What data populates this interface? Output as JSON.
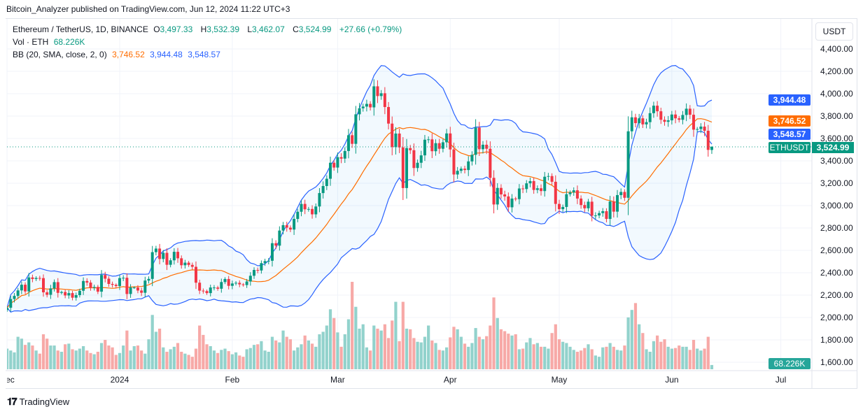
{
  "publisher_line": "Bitcoin_Analyzer published on TradingView.com, Jun 12, 2024 11:22 UTC+3",
  "legend": {
    "symbol": "Ethereum / TetherUS, 1D, BINANCE",
    "open_label": "O",
    "open": "3,497.33",
    "high_label": "H",
    "high": "3,532.39",
    "low_label": "L",
    "low": "3,462.07",
    "close_label": "C",
    "close": "3,524.99",
    "change": "+27.66 (+0.79%)",
    "vol_label": "Vol · ETH",
    "vol_value": "68.226K",
    "bb_label": "BB (20, SMA, close, 2, 0)",
    "bb_basis": "3,746.52",
    "bb_upper": "3,944.48",
    "bb_lower": "3,548.57"
  },
  "price_axis": {
    "unit": "USDT",
    "ticks": [
      "4,400.00",
      "4,200.00",
      "4,000.00",
      "3,800.00",
      "3,600.00",
      "3,400.00",
      "3,200.00",
      "3,000.00",
      "2,800.00",
      "2,600.00",
      "2,400.00",
      "2,200.00",
      "2,000.00",
      "1,800.00",
      "1,600.00"
    ]
  },
  "tags": {
    "symbol": "ETHUSDT",
    "upper": "3,944.48",
    "basis": "3,746.52",
    "lower": "3,548.57",
    "last": "3,524.99",
    "volume": "68.226K"
  },
  "footer": {
    "brand": "TradingView"
  },
  "colors": {
    "up": "#089981",
    "down": "#f23645",
    "bb_band": "#2962ff",
    "bb_basis": "#ff6d00",
    "volume_tag": "#26a69a"
  },
  "chart_data": {
    "type": "candlestick",
    "symbol": "ETHUSDT",
    "interval": "1D",
    "start_date": "2023-12-01",
    "end_date": "2024-06-12",
    "ylim": [
      1500,
      4500
    ],
    "x_ticks": [
      {
        "label": "Dec",
        "date": "2023-12-01"
      },
      {
        "label": "2024",
        "date": "2024-01-01"
      },
      {
        "label": "Feb",
        "date": "2024-02-01"
      },
      {
        "label": "Mar",
        "date": "2024-03-01"
      },
      {
        "label": "Apr",
        "date": "2024-04-01"
      },
      {
        "label": "May",
        "date": "2024-05-01"
      },
      {
        "label": "Jun",
        "date": "2024-06-01"
      },
      {
        "label": "Jul",
        "date": "2024-07-01"
      }
    ],
    "grid": true,
    "indicator": "Bollinger Bands (20, SMA, close, 2)",
    "last_bar": {
      "open": 3497.33,
      "high": 3532.39,
      "low": 3462.07,
      "close": 3524.99
    },
    "close": [
      2087,
      2165,
      2193,
      2242,
      2293,
      2233,
      2358,
      2344,
      2353,
      2352,
      2225,
      2203,
      2260,
      2316,
      2220,
      2228,
      2197,
      2218,
      2177,
      2200,
      2239,
      2326,
      2312,
      2265,
      2273,
      2231,
      2380,
      2347,
      2300,
      2292,
      2281,
      2352,
      2355,
      2210,
      2268,
      2268,
      2241,
      2221,
      2330,
      2345,
      2584,
      2616,
      2523,
      2578,
      2471,
      2511,
      2587,
      2529,
      2467,
      2490,
      2470,
      2453,
      2311,
      2240,
      2236,
      2218,
      2268,
      2268,
      2257,
      2317,
      2344,
      2283,
      2304,
      2310,
      2296,
      2290,
      2322,
      2373,
      2425,
      2420,
      2486,
      2504,
      2507,
      2664,
      2642,
      2777,
      2825,
      2803,
      2786,
      2881,
      2945,
      3015,
      2967,
      2970,
      2922,
      2992,
      3112,
      3175,
      3240,
      3383,
      3340,
      3433,
      3420,
      3488,
      3629,
      3552,
      3816,
      3870,
      3885,
      3909,
      3878,
      4066,
      3979,
      4004,
      3881,
      3733,
      3523,
      3644,
      3520,
      3157,
      3514,
      3495,
      3336,
      3383,
      3449,
      3589,
      3592,
      3486,
      3558,
      3508,
      3566,
      3645,
      3502,
      3278,
      3311,
      3330,
      3318,
      3395,
      3454,
      3697,
      3504,
      3544,
      3508,
      3248,
      3010,
      3158,
      3100,
      3082,
      2985,
      3063,
      3058,
      3153,
      3148,
      3199,
      3219,
      3140,
      3155,
      3130,
      3258,
      3264,
      3213,
      3015,
      2968,
      2988,
      3102,
      3118,
      3137,
      3063,
      3005,
      2976,
      3035,
      2910,
      2912,
      2933,
      2950,
      2881,
      3037,
      2946,
      3094,
      3122,
      3070,
      3664,
      3789,
      3737,
      3780,
      3726,
      3746,
      3826,
      3893,
      3843,
      3767,
      3749,
      3762,
      3814,
      3780,
      3767,
      3810,
      3866,
      3812,
      3679,
      3684,
      3706,
      3669,
      3498,
      3524.99
    ],
    "volume_k": [
      330,
      300,
      270,
      520,
      490,
      390,
      430,
      380,
      300,
      250,
      560,
      490,
      380,
      380,
      300,
      280,
      400,
      410,
      320,
      300,
      330,
      370,
      300,
      260,
      240,
      280,
      420,
      470,
      380,
      350,
      230,
      260,
      380,
      620,
      300,
      370,
      380,
      300,
      250,
      480,
      870,
      600,
      650,
      350,
      280,
      320,
      360,
      420,
      280,
      250,
      230,
      200,
      330,
      700,
      550,
      400,
      370,
      300,
      260,
      310,
      330,
      290,
      240,
      270,
      220,
      200,
      320,
      340,
      390,
      400,
      450,
      300,
      280,
      520,
      460,
      430,
      620,
      520,
      480,
      300,
      350,
      400,
      540,
      460,
      410,
      360,
      560,
      600,
      700,
      960,
      820,
      590,
      360,
      560,
      800,
      1400,
      1000,
      650,
      720,
      350,
      300,
      700,
      650,
      620,
      720,
      500,
      780,
      1080,
      450,
      1080,
      650,
      640,
      500,
      440,
      430,
      520,
      700,
      460,
      420,
      310,
      300,
      350,
      510,
      680,
      640,
      520,
      410,
      360,
      420,
      660,
      520,
      480,
      530,
      700,
      1150,
      820,
      640,
      610,
      570,
      540,
      560,
      320,
      330,
      430,
      500,
      400,
      420,
      360,
      360,
      330,
      580,
      720,
      480,
      440,
      420,
      360,
      310,
      280,
      300,
      340,
      400,
      320,
      220,
      200,
      350,
      360,
      420,
      360,
      310,
      300,
      380,
      830,
      950,
      1060,
      720,
      580,
      320,
      280,
      450,
      540,
      440,
      480,
      360,
      330,
      340,
      380,
      360,
      360,
      310,
      470,
      330,
      300,
      330,
      520,
      68.226
    ]
  }
}
